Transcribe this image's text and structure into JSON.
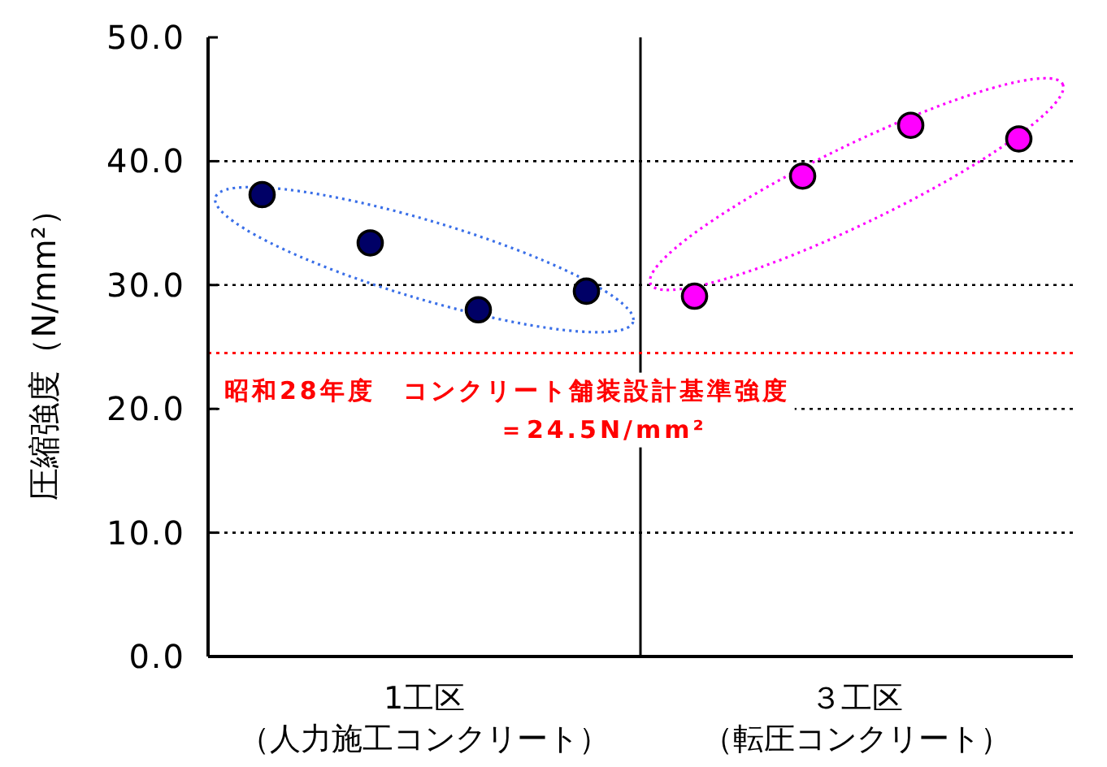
{
  "chart_data": {
    "type": "scatter",
    "ylabel": "圧縮強度（N/mm²）",
    "categories": [
      null,
      null,
      null,
      null,
      null,
      null,
      null,
      null
    ],
    "ylim": [
      0,
      50
    ],
    "yticks": [
      {
        "value": 0,
        "label": "0.0"
      },
      {
        "value": 10,
        "label": "10.0"
      },
      {
        "value": 20,
        "label": "20.0"
      },
      {
        "value": 30,
        "label": "30.0"
      },
      {
        "value": 40,
        "label": "40.0"
      },
      {
        "value": 50,
        "label": "50.0"
      }
    ],
    "series": [
      {
        "color": "#000066",
        "values": [
          37.3,
          33.4,
          28.0,
          29.5,
          null,
          null,
          null,
          null
        ]
      },
      {
        "color": "#ff00ff",
        "values": [
          null,
          null,
          null,
          null,
          29.1,
          38.8,
          42.9,
          41.8
        ]
      }
    ],
    "ref_lines": [
      {
        "axis": "y",
        "value": 24.5,
        "color": "#ff0000",
        "line_style": "dotted",
        "label": "昭和28年度　コンクリート舗装設計基準強度＝24.5N/mm²"
      }
    ],
    "annotations": [
      "1工区（人力施工コンクリート）",
      "３工区（転圧コンクリート）"
    ],
    "grid": "y",
    "marker": "circle",
    "line_style": "dotted"
  }
}
